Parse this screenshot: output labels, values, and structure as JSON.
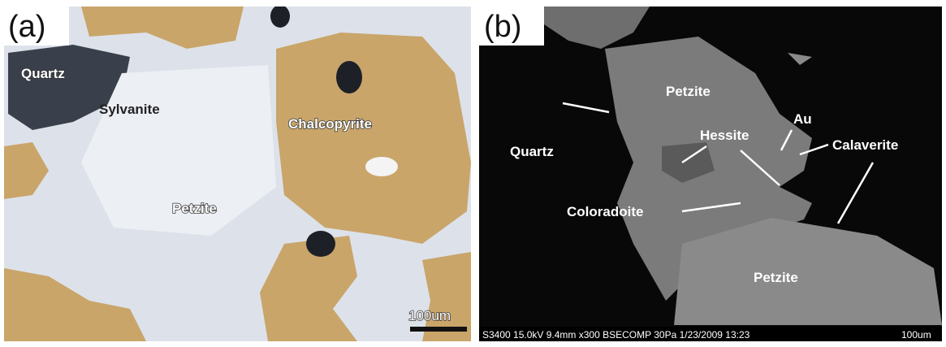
{
  "panels": [
    {
      "label": "(a)",
      "annotations": [
        "Quartz",
        "Sylvanite",
        "Chalcopyrite",
        "Petzite"
      ],
      "scale_bar": "100um"
    },
    {
      "label": "(b)",
      "annotations": [
        "Petzite",
        "Quartz",
        "Au",
        "Hessite",
        "Calaverite",
        "Coloradoite",
        "Petzite"
      ],
      "footer": "S3400 15.0kV 9.4mm x300 BSECOMP 30Pa 1/23/2009 13:23",
      "scale_bar": "100um"
    }
  ]
}
